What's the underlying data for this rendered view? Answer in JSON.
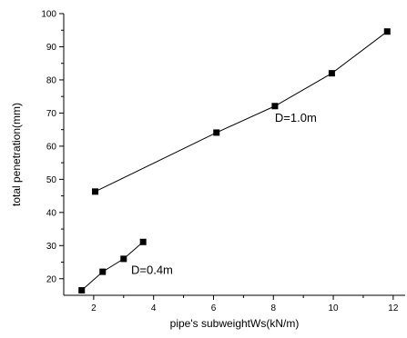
{
  "chart_data": {
    "type": "line",
    "xlabel": "pipe's subweightWs(kN/m)",
    "ylabel": "total penetration(mm)",
    "xlim": [
      1,
      12.4
    ],
    "ylim": [
      15,
      100
    ],
    "x_ticks": [
      2,
      4,
      6,
      8,
      10,
      12
    ],
    "y_ticks": [
      20,
      30,
      40,
      50,
      60,
      70,
      80,
      90,
      100
    ],
    "grid": false,
    "legend": "none",
    "marker": "square",
    "color": "#000000",
    "series": [
      {
        "x": [
          2.05,
          6.1,
          8.05,
          9.95,
          11.8
        ],
        "y": [
          46.3,
          64.1,
          72.1,
          82.0,
          94.6
        ]
      },
      {
        "x": [
          1.6,
          2.3,
          3.0,
          3.65
        ],
        "y": [
          16.5,
          22.1,
          26.0,
          31.1
        ]
      }
    ],
    "annotations": [
      {
        "text": "D=1.0m",
        "x": 8.05,
        "y": 68.5
      },
      {
        "text": "D=0.4m",
        "x": 3.25,
        "y": 22.5
      }
    ]
  }
}
